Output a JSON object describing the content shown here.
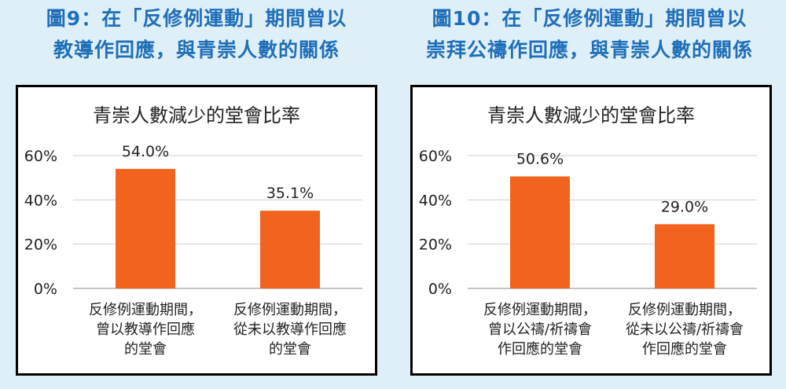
{
  "figures": [
    {
      "title_lines": [
        "圖9：在「反修例運動」期間曾以",
        "教導作回應，與青崇人數的關係"
      ]
    },
    {
      "title_lines": [
        "圖10：在「反修例運動」期間曾以",
        "崇拜公禱作回應，與青崇人數的關係"
      ]
    }
  ],
  "chart_data": [
    {
      "type": "bar",
      "title": "青崇人數減少的堂會比率",
      "categories": [
        [
          "反修例運動期間，",
          "曾以教導作回應",
          "的堂會"
        ],
        [
          "反修例運動期間，",
          "從未以教導作回應",
          "的堂會"
        ]
      ],
      "values": [
        54.0,
        35.1
      ],
      "data_labels": [
        "54.0%",
        "35.1%"
      ],
      "y_ticks": [
        "0%",
        "20%",
        "40%",
        "60%"
      ],
      "ylim": [
        0,
        60
      ],
      "grid": true,
      "bar_color": "#f2641e"
    },
    {
      "type": "bar",
      "title": "青崇人數減少的堂會比率",
      "categories": [
        [
          "反修例運動期間，",
          "曾以公禱/祈禱會",
          "作回應的堂會"
        ],
        [
          "反修例運動期間，",
          "從未以公禱/祈禱會",
          "作回應的堂會"
        ]
      ],
      "values": [
        50.6,
        29.0
      ],
      "data_labels": [
        "50.6%",
        "29.0%"
      ],
      "y_ticks": [
        "0%",
        "20%",
        "40%",
        "60%"
      ],
      "ylim": [
        0,
        60
      ],
      "grid": true,
      "bar_color": "#f2641e"
    }
  ]
}
